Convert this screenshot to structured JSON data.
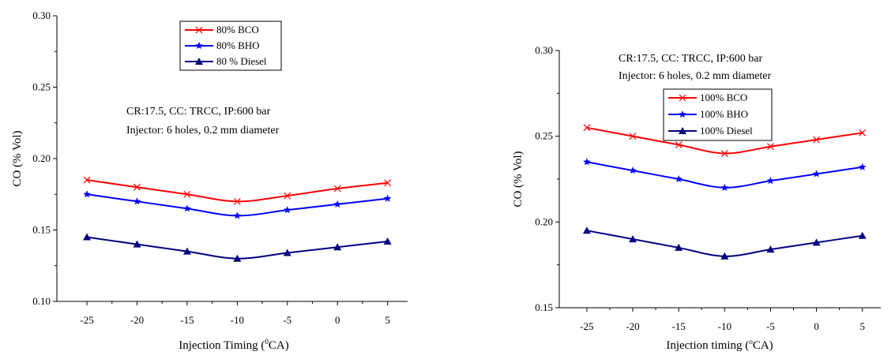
{
  "chart_data": [
    {
      "type": "line",
      "id": "left",
      "xlabel": "Injection Timing (",
      "xlabel_sup": "0",
      "xlabel_end": "CA)",
      "ylabel": "CO (% Vol)",
      "x": [
        -25,
        -20,
        -15,
        -10,
        -5,
        0,
        5
      ],
      "x_tick_labels": [
        "-25",
        "-20",
        "-15",
        "-10",
        "-5",
        "0",
        "5"
      ],
      "ylim": [
        0.1,
        0.3
      ],
      "y_ticks": [
        0.1,
        0.15,
        0.2,
        0.25,
        0.3
      ],
      "y_tick_labels": [
        "0.10",
        "0.15",
        "0.20",
        "0.25",
        "0.30"
      ],
      "grid": false,
      "legend_position": "top-center",
      "annotation": [
        "CR:17.5, CC: TRCC, IP:600 bar",
        "Injector: 6 holes, 0.2 mm diameter"
      ],
      "series": [
        {
          "name": "80% BCO",
          "color": "#ff0000",
          "marker": "x",
          "values": [
            0.185,
            0.18,
            0.175,
            0.17,
            0.174,
            0.179,
            0.183
          ]
        },
        {
          "name": "80% BHO",
          "color": "#0000ff",
          "marker": "star",
          "values": [
            0.175,
            0.17,
            0.165,
            0.16,
            0.164,
            0.168,
            0.172
          ]
        },
        {
          "name": "80 % Diesel",
          "color": "#000080",
          "marker": "triangle",
          "values": [
            0.145,
            0.14,
            0.135,
            0.13,
            0.134,
            0.138,
            0.142
          ]
        }
      ]
    },
    {
      "type": "line",
      "id": "right",
      "xlabel": "Injection timing (",
      "xlabel_sup": "o",
      "xlabel_end": "CA)",
      "ylabel": "CO (% Vol)",
      "x": [
        -25,
        -20,
        -15,
        -10,
        -5,
        0,
        5
      ],
      "x_tick_labels": [
        "-25",
        "-20",
        "-15",
        "-10",
        "-5",
        "0",
        "5"
      ],
      "ylim": [
        0.15,
        0.3
      ],
      "y_ticks": [
        0.15,
        0.2,
        0.25,
        0.3
      ],
      "y_tick_labels": [
        "0.15",
        "0.20",
        "0.25",
        "0.30"
      ],
      "grid": false,
      "legend_position": "top-center",
      "annotation": [
        "CR:17.5, CC: TRCC, IP:600 bar",
        "Injector: 6 holes, 0.2 mm diameter"
      ],
      "series": [
        {
          "name": "100% BCO",
          "color": "#ff0000",
          "marker": "x",
          "values": [
            0.255,
            0.25,
            0.245,
            0.24,
            0.244,
            0.248,
            0.252
          ]
        },
        {
          "name": "100% BHO",
          "color": "#0000ff",
          "marker": "star",
          "values": [
            0.235,
            0.23,
            0.225,
            0.22,
            0.224,
            0.228,
            0.232
          ]
        },
        {
          "name": "100% Diesel",
          "color": "#000080",
          "marker": "triangle",
          "values": [
            0.195,
            0.19,
            0.185,
            0.18,
            0.184,
            0.188,
            0.192
          ]
        }
      ]
    }
  ]
}
